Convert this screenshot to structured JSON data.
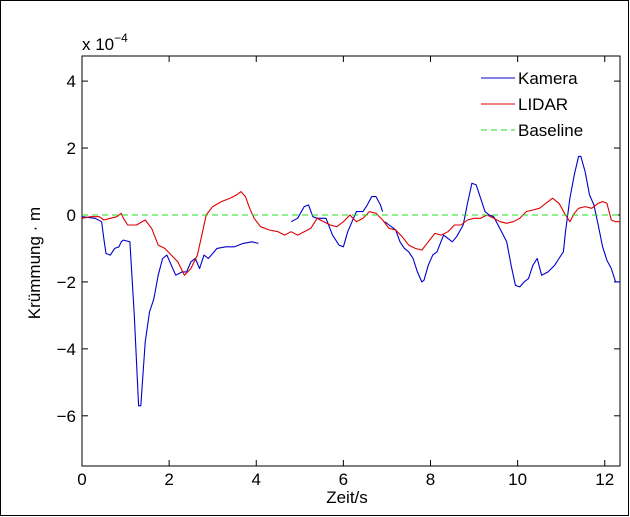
{
  "chart_data": {
    "type": "line",
    "title": "",
    "xlabel": "Zeit/s",
    "ylabel": "Krümmung · m",
    "exponent_label": "x 10",
    "exponent_power": "−4",
    "xlim": [
      0,
      12.35
    ],
    "ylim": [
      -7.5,
      4.75
    ],
    "xticks": [
      0,
      2,
      4,
      6,
      8,
      10,
      12
    ],
    "xtick_labels": [
      "0",
      "2",
      "4",
      "6",
      "8",
      "10",
      "12"
    ],
    "yticks": [
      -6,
      -4,
      -2,
      0,
      2,
      4
    ],
    "ytick_labels": [
      "−6",
      "−4",
      "−2",
      "0",
      "2",
      "4"
    ],
    "grid": false,
    "legend_position": "top-right",
    "series": [
      {
        "name": "Kamera",
        "color": "#0000cc",
        "style": "solid",
        "segments": [
          [
            [
              0.0,
              -0.05
            ],
            [
              0.3,
              -0.1
            ],
            [
              0.45,
              -0.2
            ],
            [
              0.5,
              -0.7
            ],
            [
              0.55,
              -1.15
            ],
            [
              0.65,
              -1.2
            ],
            [
              0.75,
              -1.0
            ],
            [
              0.85,
              -0.95
            ],
            [
              0.9,
              -0.8
            ],
            [
              0.95,
              -0.75
            ],
            [
              1.1,
              -0.8
            ],
            [
              1.2,
              -3.0
            ],
            [
              1.3,
              -5.7
            ],
            [
              1.35,
              -5.7
            ],
            [
              1.45,
              -3.8
            ],
            [
              1.55,
              -2.9
            ],
            [
              1.65,
              -2.5
            ],
            [
              1.75,
              -1.8
            ],
            [
              1.85,
              -1.3
            ],
            [
              1.95,
              -1.2
            ],
            [
              2.05,
              -1.5
            ],
            [
              2.15,
              -1.8
            ],
            [
              2.3,
              -1.7
            ],
            [
              2.4,
              -1.7
            ],
            [
              2.5,
              -1.4
            ],
            [
              2.6,
              -1.3
            ],
            [
              2.7,
              -1.6
            ],
            [
              2.8,
              -1.2
            ],
            [
              2.9,
              -1.3
            ],
            [
              3.0,
              -1.15
            ],
            [
              3.1,
              -1.0
            ],
            [
              3.3,
              -0.95
            ],
            [
              3.5,
              -0.95
            ],
            [
              3.7,
              -0.85
            ],
            [
              3.9,
              -0.8
            ],
            [
              4.05,
              -0.85
            ]
          ],
          [
            [
              4.8,
              -0.2
            ],
            [
              4.95,
              -0.1
            ],
            [
              5.1,
              0.25
            ],
            [
              5.2,
              0.3
            ],
            [
              5.3,
              -0.05
            ],
            [
              5.4,
              -0.1
            ],
            [
              5.6,
              -0.1
            ],
            [
              5.75,
              -0.6
            ],
            [
              5.9,
              -0.9
            ],
            [
              6.0,
              -0.95
            ],
            [
              6.1,
              -0.5
            ],
            [
              6.3,
              0.1
            ],
            [
              6.45,
              0.1
            ],
            [
              6.55,
              0.3
            ],
            [
              6.65,
              0.55
            ],
            [
              6.75,
              0.55
            ],
            [
              6.85,
              0.3
            ],
            [
              6.9,
              0.1
            ]
          ],
          [
            [
              6.95,
              -0.2
            ],
            [
              7.05,
              -0.3
            ],
            [
              7.2,
              -0.45
            ],
            [
              7.3,
              -0.8
            ],
            [
              7.4,
              -1.0
            ],
            [
              7.5,
              -1.1
            ],
            [
              7.6,
              -1.3
            ],
            [
              7.7,
              -1.7
            ],
            [
              7.8,
              -2.0
            ],
            [
              7.85,
              -1.95
            ],
            [
              7.95,
              -1.5
            ],
            [
              8.05,
              -1.2
            ],
            [
              8.15,
              -1.1
            ],
            [
              8.3,
              -0.6
            ],
            [
              8.4,
              -0.7
            ],
            [
              8.5,
              -0.8
            ],
            [
              8.6,
              -0.65
            ],
            [
              8.75,
              -0.3
            ],
            [
              8.85,
              0.35
            ],
            [
              8.95,
              0.95
            ],
            [
              9.05,
              0.9
            ],
            [
              9.15,
              0.5
            ],
            [
              9.25,
              0.1
            ],
            [
              9.35,
              0.0
            ],
            [
              9.45,
              -0.05
            ],
            [
              9.55,
              -0.3
            ],
            [
              9.65,
              -0.55
            ],
            [
              9.75,
              -0.8
            ],
            [
              9.85,
              -1.5
            ],
            [
              9.95,
              -2.1
            ],
            [
              10.05,
              -2.15
            ],
            [
              10.15,
              -2.0
            ],
            [
              10.25,
              -1.9
            ],
            [
              10.35,
              -1.5
            ],
            [
              10.45,
              -1.3
            ],
            [
              10.55,
              -1.8
            ],
            [
              10.7,
              -1.7
            ],
            [
              10.85,
              -1.5
            ],
            [
              10.95,
              -1.3
            ],
            [
              11.05,
              -1.1
            ],
            [
              11.1,
              -0.5
            ],
            [
              11.2,
              0.5
            ],
            [
              11.3,
              1.2
            ],
            [
              11.4,
              1.75
            ],
            [
              11.45,
              1.75
            ],
            [
              11.55,
              1.3
            ],
            [
              11.65,
              0.6
            ],
            [
              11.75,
              0.3
            ],
            [
              11.85,
              -0.3
            ],
            [
              11.95,
              -0.95
            ],
            [
              12.05,
              -1.35
            ],
            [
              12.15,
              -1.6
            ],
            [
              12.25,
              -2.0
            ],
            [
              12.35,
              -2.0
            ]
          ]
        ]
      },
      {
        "name": "LIDAR",
        "color": "#dd0000",
        "style": "solid",
        "segments": [
          [
            [
              0.0,
              -0.1
            ],
            [
              0.2,
              -0.05
            ],
            [
              0.4,
              -0.05
            ],
            [
              0.5,
              -0.15
            ],
            [
              0.65,
              -0.1
            ],
            [
              0.8,
              -0.05
            ],
            [
              0.9,
              0.05
            ],
            [
              0.95,
              -0.1
            ],
            [
              1.05,
              -0.3
            ],
            [
              1.25,
              -0.3
            ],
            [
              1.45,
              -0.15
            ],
            [
              1.6,
              -0.4
            ],
            [
              1.75,
              -0.9
            ],
            [
              1.9,
              -1.0
            ],
            [
              2.05,
              -1.2
            ],
            [
              2.2,
              -1.4
            ],
            [
              2.35,
              -1.8
            ],
            [
              2.5,
              -1.6
            ],
            [
              2.65,
              -1.2
            ],
            [
              2.75,
              -0.6
            ],
            [
              2.85,
              0.0
            ],
            [
              3.0,
              0.25
            ],
            [
              3.2,
              0.4
            ],
            [
              3.4,
              0.5
            ],
            [
              3.55,
              0.6
            ],
            [
              3.65,
              0.7
            ],
            [
              3.75,
              0.55
            ],
            [
              3.85,
              0.2
            ],
            [
              3.95,
              -0.1
            ],
            [
              4.1,
              -0.35
            ],
            [
              4.3,
              -0.45
            ],
            [
              4.5,
              -0.5
            ],
            [
              4.65,
              -0.6
            ],
            [
              4.8,
              -0.5
            ],
            [
              4.95,
              -0.6
            ],
            [
              5.1,
              -0.5
            ],
            [
              5.25,
              -0.4
            ],
            [
              5.4,
              -0.1
            ],
            [
              5.55,
              -0.2
            ],
            [
              5.7,
              -0.3
            ],
            [
              5.85,
              -0.35
            ],
            [
              6.0,
              -0.2
            ],
            [
              6.15,
              0.0
            ],
            [
              6.3,
              -0.2
            ],
            [
              6.45,
              -0.1
            ],
            [
              6.6,
              0.1
            ],
            [
              6.75,
              0.05
            ],
            [
              6.9,
              -0.15
            ],
            [
              7.05,
              -0.4
            ],
            [
              7.2,
              -0.45
            ],
            [
              7.35,
              -0.65
            ],
            [
              7.5,
              -0.9
            ],
            [
              7.65,
              -1.0
            ],
            [
              7.8,
              -1.05
            ],
            [
              7.95,
              -0.8
            ],
            [
              8.1,
              -0.55
            ],
            [
              8.25,
              -0.6
            ],
            [
              8.4,
              -0.5
            ],
            [
              8.55,
              -0.3
            ],
            [
              8.7,
              -0.3
            ],
            [
              8.85,
              -0.15
            ],
            [
              9.0,
              -0.1
            ],
            [
              9.15,
              -0.1
            ],
            [
              9.3,
              0.0
            ],
            [
              9.45,
              -0.1
            ],
            [
              9.6,
              -0.2
            ],
            [
              9.75,
              -0.25
            ],
            [
              9.9,
              -0.2
            ],
            [
              10.05,
              -0.1
            ],
            [
              10.2,
              0.1
            ],
            [
              10.35,
              0.15
            ],
            [
              10.5,
              0.2
            ],
            [
              10.65,
              0.35
            ],
            [
              10.8,
              0.5
            ],
            [
              10.95,
              0.35
            ],
            [
              11.1,
              0.0
            ],
            [
              11.2,
              -0.2
            ],
            [
              11.3,
              0.05
            ],
            [
              11.4,
              0.2
            ],
            [
              11.55,
              0.25
            ],
            [
              11.7,
              0.2
            ],
            [
              11.85,
              0.35
            ],
            [
              11.95,
              0.4
            ],
            [
              12.05,
              0.35
            ],
            [
              12.15,
              -0.15
            ],
            [
              12.25,
              -0.2
            ],
            [
              12.35,
              -0.2
            ]
          ]
        ]
      },
      {
        "name": "Baseline",
        "color": "#22dd22",
        "style": "dashed",
        "segments": [
          [
            [
              0.0,
              0.0
            ],
            [
              12.35,
              0.0
            ]
          ]
        ]
      }
    ]
  }
}
